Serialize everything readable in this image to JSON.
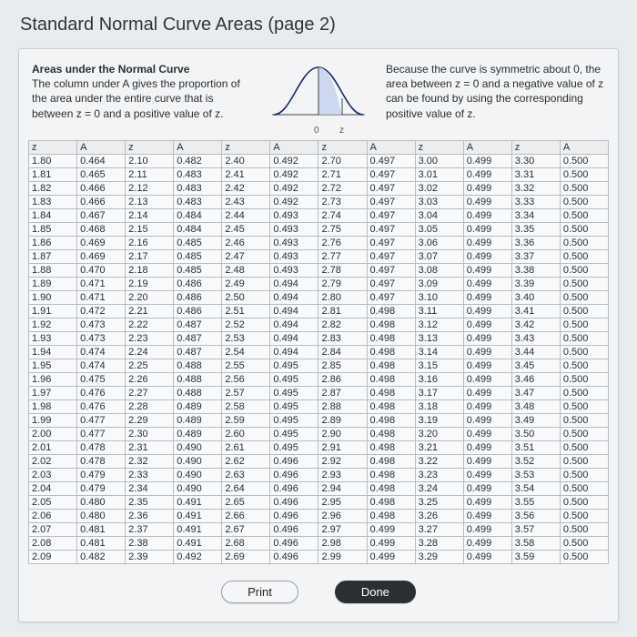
{
  "title": "Standard Normal Curve Areas (page 2)",
  "left_desc": {
    "heading": "Areas under the Normal Curve",
    "body": "The column under A gives the proportion of the area under the entire curve that is between z = 0 and a positive value of z."
  },
  "right_desc": "Because the curve is symmetric about 0, the area between z = 0 and a negative value of z can be found by using the corresponding positive value of z.",
  "headers": [
    "z",
    "A",
    "z",
    "A",
    "z",
    "A",
    "z",
    "A",
    "z",
    "A",
    "z",
    "A"
  ],
  "rows": [
    [
      "1.80",
      "0.464",
      "2.10",
      "0.482",
      "2.40",
      "0.492",
      "2.70",
      "0.497",
      "3.00",
      "0.499",
      "3.30",
      "0.500"
    ],
    [
      "1.81",
      "0.465",
      "2.11",
      "0.483",
      "2.41",
      "0.492",
      "2.71",
      "0.497",
      "3.01",
      "0.499",
      "3.31",
      "0.500"
    ],
    [
      "1.82",
      "0.466",
      "2.12",
      "0.483",
      "2.42",
      "0.492",
      "2.72",
      "0.497",
      "3.02",
      "0.499",
      "3.32",
      "0.500"
    ],
    [
      "1.83",
      "0.466",
      "2.13",
      "0.483",
      "2.43",
      "0.492",
      "2.73",
      "0.497",
      "3.03",
      "0.499",
      "3.33",
      "0.500"
    ],
    [
      "1.84",
      "0.467",
      "2.14",
      "0.484",
      "2.44",
      "0.493",
      "2.74",
      "0.497",
      "3.04",
      "0.499",
      "3.34",
      "0.500"
    ],
    [
      "1.85",
      "0.468",
      "2.15",
      "0.484",
      "2.45",
      "0.493",
      "2.75",
      "0.497",
      "3.05",
      "0.499",
      "3.35",
      "0.500"
    ],
    [
      "1.86",
      "0.469",
      "2.16",
      "0.485",
      "2.46",
      "0.493",
      "2.76",
      "0.497",
      "3.06",
      "0.499",
      "3.36",
      "0.500"
    ],
    [
      "1.87",
      "0.469",
      "2.17",
      "0.485",
      "2.47",
      "0.493",
      "2.77",
      "0.497",
      "3.07",
      "0.499",
      "3.37",
      "0.500"
    ],
    [
      "1.88",
      "0.470",
      "2.18",
      "0.485",
      "2.48",
      "0.493",
      "2.78",
      "0.497",
      "3.08",
      "0.499",
      "3.38",
      "0.500"
    ],
    [
      "1.89",
      "0.471",
      "2.19",
      "0.486",
      "2.49",
      "0.494",
      "2.79",
      "0.497",
      "3.09",
      "0.499",
      "3.39",
      "0.500"
    ],
    [
      "1.90",
      "0.471",
      "2.20",
      "0.486",
      "2.50",
      "0.494",
      "2.80",
      "0.497",
      "3.10",
      "0.499",
      "3.40",
      "0.500"
    ],
    [
      "1.91",
      "0.472",
      "2.21",
      "0.486",
      "2.51",
      "0.494",
      "2.81",
      "0.498",
      "3.11",
      "0.499",
      "3.41",
      "0.500"
    ],
    [
      "1.92",
      "0.473",
      "2.22",
      "0.487",
      "2.52",
      "0.494",
      "2.82",
      "0.498",
      "3.12",
      "0.499",
      "3.42",
      "0.500"
    ],
    [
      "1.93",
      "0.473",
      "2.23",
      "0.487",
      "2.53",
      "0.494",
      "2.83",
      "0.498",
      "3.13",
      "0.499",
      "3.43",
      "0.500"
    ],
    [
      "1.94",
      "0.474",
      "2.24",
      "0.487",
      "2.54",
      "0.494",
      "2.84",
      "0.498",
      "3.14",
      "0.499",
      "3.44",
      "0.500"
    ],
    [
      "1.95",
      "0.474",
      "2.25",
      "0.488",
      "2.55",
      "0.495",
      "2.85",
      "0.498",
      "3.15",
      "0.499",
      "3.45",
      "0.500"
    ],
    [
      "1.96",
      "0.475",
      "2.26",
      "0.488",
      "2.56",
      "0.495",
      "2.86",
      "0.498",
      "3.16",
      "0.499",
      "3.46",
      "0.500"
    ],
    [
      "1.97",
      "0.476",
      "2.27",
      "0.488",
      "2.57",
      "0.495",
      "2.87",
      "0.498",
      "3.17",
      "0.499",
      "3.47",
      "0.500"
    ],
    [
      "1.98",
      "0.476",
      "2.28",
      "0.489",
      "2.58",
      "0.495",
      "2.88",
      "0.498",
      "3.18",
      "0.499",
      "3.48",
      "0.500"
    ],
    [
      "1.99",
      "0.477",
      "2.29",
      "0.489",
      "2.59",
      "0.495",
      "2.89",
      "0.498",
      "3.19",
      "0.499",
      "3.49",
      "0.500"
    ],
    [
      "2.00",
      "0.477",
      "2.30",
      "0.489",
      "2.60",
      "0.495",
      "2.90",
      "0.498",
      "3.20",
      "0.499",
      "3.50",
      "0.500"
    ],
    [
      "2.01",
      "0.478",
      "2.31",
      "0.490",
      "2.61",
      "0.495",
      "2.91",
      "0.498",
      "3.21",
      "0.499",
      "3.51",
      "0.500"
    ],
    [
      "2.02",
      "0.478",
      "2.32",
      "0.490",
      "2.62",
      "0.496",
      "2.92",
      "0.498",
      "3.22",
      "0.499",
      "3.52",
      "0.500"
    ],
    [
      "2.03",
      "0.479",
      "2.33",
      "0.490",
      "2.63",
      "0.496",
      "2.93",
      "0.498",
      "3.23",
      "0.499",
      "3.53",
      "0.500"
    ],
    [
      "2.04",
      "0.479",
      "2.34",
      "0.490",
      "2.64",
      "0.496",
      "2.94",
      "0.498",
      "3.24",
      "0.499",
      "3.54",
      "0.500"
    ],
    [
      "2.05",
      "0.480",
      "2.35",
      "0.491",
      "2.65",
      "0.496",
      "2.95",
      "0.498",
      "3.25",
      "0.499",
      "3.55",
      "0.500"
    ],
    [
      "2.06",
      "0.480",
      "2.36",
      "0.491",
      "2.66",
      "0.496",
      "2.96",
      "0.498",
      "3.26",
      "0.499",
      "3.56",
      "0.500"
    ],
    [
      "2.07",
      "0.481",
      "2.37",
      "0.491",
      "2.67",
      "0.496",
      "2.97",
      "0.499",
      "3.27",
      "0.499",
      "3.57",
      "0.500"
    ],
    [
      "2.08",
      "0.481",
      "2.38",
      "0.491",
      "2.68",
      "0.496",
      "2.98",
      "0.499",
      "3.28",
      "0.499",
      "3.58",
      "0.500"
    ],
    [
      "2.09",
      "0.482",
      "2.39",
      "0.492",
      "2.69",
      "0.496",
      "2.99",
      "0.499",
      "3.29",
      "0.499",
      "3.59",
      "0.500"
    ]
  ],
  "buttons": {
    "print": "Print",
    "done": "Done"
  },
  "curve": {
    "stroke": "#1a2a6c",
    "fill": "#c6d2ee",
    "axis": "#444",
    "labels": {
      "zero": "0",
      "z": "z"
    }
  }
}
